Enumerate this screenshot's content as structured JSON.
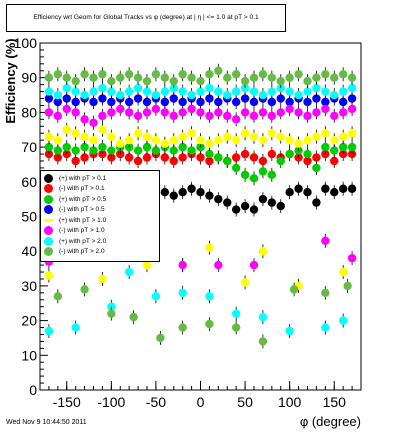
{
  "footer": "Wed Nov  9 10:44:50 2011",
  "chart_data": {
    "type": "scatter",
    "title": "Efficiency wrt Geom for Global Tracks vs φ (degree) at |  η | <= 1.0 at pT > 0.1",
    "xlabel": "φ (degree)",
    "ylabel": "Efficiency (%)",
    "xlim": [
      -180,
      180
    ],
    "ylim": [
      0,
      100
    ],
    "xticks": [
      "-150",
      "-100",
      "-50",
      "0",
      "50",
      "100",
      "150"
    ],
    "xtick_values": [
      -150,
      -100,
      -50,
      0,
      50,
      100,
      150
    ],
    "yticks": [
      "0",
      "10",
      "20",
      "30",
      "40",
      "50",
      "60",
      "70",
      "80",
      "90",
      "100"
    ],
    "ytick_values": [
      0,
      10,
      20,
      30,
      40,
      50,
      60,
      70,
      80,
      90,
      100
    ],
    "grid": false,
    "legend_position": "left",
    "series": [
      {
        "name": "(+) with pT > 0.1",
        "color": "#000000",
        "marker": "circle",
        "x": [
          -170,
          -160,
          -150,
          -140,
          -130,
          -120,
          -110,
          -100,
          -90,
          -80,
          -70,
          -60,
          -50,
          -40,
          -30,
          -20,
          -10,
          0,
          10,
          20,
          30,
          40,
          50,
          60,
          70,
          80,
          90,
          100,
          110,
          120,
          130,
          140,
          150,
          160,
          170
        ],
        "y": [
          58,
          57,
          58,
          57,
          59,
          58,
          57,
          58,
          58,
          57,
          58,
          57,
          58,
          57,
          56,
          57,
          58,
          57,
          56,
          55,
          54,
          52,
          53,
          52,
          55,
          54,
          53,
          57,
          58,
          57,
          54,
          58,
          57,
          58,
          58
        ]
      },
      {
        "name": "(-) with pT > 0.1",
        "color": "#ff0000",
        "marker": "circle",
        "x": [
          -170,
          -160,
          -150,
          -140,
          -130,
          -120,
          -110,
          -100,
          -90,
          -80,
          -70,
          -60,
          -50,
          -40,
          -30,
          -20,
          -10,
          0,
          10,
          20,
          30,
          40,
          50,
          60,
          70,
          80,
          90,
          100,
          110,
          120,
          130,
          140,
          150,
          160,
          170
        ],
        "y": [
          68,
          67,
          68,
          66,
          67,
          68,
          68,
          67,
          68,
          67,
          66,
          67,
          68,
          67,
          66,
          67,
          68,
          67,
          66,
          67,
          66,
          67,
          68,
          67,
          66,
          68,
          67,
          68,
          67,
          66,
          67,
          68,
          66,
          68,
          68
        ]
      },
      {
        "name": "(+) with pT > 0.5",
        "color": "#00cc00",
        "marker": "circle",
        "x": [
          -170,
          -160,
          -150,
          -140,
          -130,
          -120,
          -110,
          -100,
          -90,
          -80,
          -70,
          -60,
          -50,
          -40,
          -30,
          -20,
          -10,
          0,
          10,
          20,
          30,
          40,
          50,
          60,
          70,
          80,
          90,
          100,
          110,
          120,
          130,
          140,
          150,
          160,
          170
        ],
        "y": [
          70,
          69,
          70,
          69,
          70,
          69,
          70,
          69,
          70,
          70,
          69,
          70,
          69,
          70,
          69,
          70,
          69,
          70,
          68,
          67,
          66,
          64,
          62,
          61,
          63,
          62,
          66,
          68,
          69,
          68,
          64,
          70,
          69,
          70,
          70
        ]
      },
      {
        "name": "(-) with pT > 0.5",
        "color": "#0000ff",
        "marker": "circle",
        "x": [
          -170,
          -160,
          -150,
          -140,
          -130,
          -120,
          -110,
          -100,
          -90,
          -80,
          -70,
          -60,
          -50,
          -40,
          -30,
          -20,
          -10,
          0,
          10,
          20,
          30,
          40,
          50,
          60,
          70,
          80,
          90,
          100,
          110,
          120,
          130,
          140,
          150,
          160,
          170
        ],
        "y": [
          84,
          83,
          84,
          83,
          84,
          83,
          84,
          83,
          84,
          83,
          84,
          83,
          84,
          83,
          84,
          83,
          84,
          83,
          84,
          83,
          84,
          83,
          84,
          83,
          84,
          83,
          84,
          83,
          84,
          83,
          84,
          83,
          84,
          83,
          84
        ]
      },
      {
        "name": "(+) with pT > 1.0",
        "color": "#ffff00",
        "marker": "circle",
        "x": [
          -170,
          -160,
          -150,
          -140,
          -130,
          -120,
          -110,
          -100,
          -90,
          -80,
          -70,
          -60,
          -50,
          -40,
          -30,
          -20,
          -10,
          0,
          10,
          20,
          30,
          40,
          50,
          60,
          70,
          80,
          90,
          100,
          110,
          120,
          130,
          140,
          150,
          160,
          170
        ],
        "y": [
          73,
          72,
          75,
          74,
          73,
          72,
          75,
          73,
          71,
          72,
          74,
          73,
          72,
          71,
          72,
          73,
          74,
          72,
          71,
          72,
          73,
          72,
          74,
          73,
          72,
          74,
          73,
          72,
          71,
          72,
          73,
          74,
          72,
          73,
          74
        ]
      },
      {
        "name": "(-) with pT > 1.0",
        "color": "#ff00ff",
        "marker": "circle",
        "x": [
          -170,
          -160,
          -150,
          -140,
          -130,
          -120,
          -110,
          -100,
          -90,
          -80,
          -70,
          -60,
          -50,
          -40,
          -30,
          -20,
          -10,
          0,
          10,
          20,
          30,
          40,
          50,
          60,
          70,
          80,
          90,
          100,
          110,
          120,
          130,
          140,
          150,
          160,
          170
        ],
        "y": [
          80,
          79,
          81,
          80,
          78,
          77,
          79,
          80,
          81,
          80,
          79,
          80,
          81,
          80,
          79,
          80,
          81,
          80,
          79,
          80,
          79,
          78,
          80,
          79,
          80,
          79,
          80,
          81,
          80,
          79,
          80,
          81,
          79,
          80,
          81
        ]
      },
      {
        "name": "(+) with pT > 2.0",
        "color": "#00ffff",
        "marker": "circle",
        "x": [
          -170,
          -160,
          -150,
          -140,
          -130,
          -120,
          -110,
          -100,
          -90,
          -80,
          -70,
          -60,
          -50,
          -40,
          -30,
          -20,
          -10,
          0,
          10,
          20,
          30,
          40,
          50,
          60,
          70,
          80,
          90,
          100,
          110,
          120,
          130,
          140,
          150,
          160,
          170
        ],
        "y": [
          86,
          85,
          87,
          86,
          85,
          86,
          87,
          86,
          85,
          86,
          87,
          86,
          85,
          86,
          87,
          86,
          85,
          86,
          87,
          86,
          85,
          86,
          87,
          86,
          85,
          86,
          87,
          86,
          85,
          86,
          87,
          86,
          85,
          86,
          87
        ]
      },
      {
        "name": "(-) with pT > 2.0",
        "color": "#66bb44",
        "marker": "circle",
        "x": [
          -170,
          -160,
          -150,
          -140,
          -130,
          -120,
          -110,
          -100,
          -90,
          -80,
          -70,
          -60,
          -50,
          -40,
          -30,
          -20,
          -10,
          0,
          10,
          20,
          30,
          40,
          50,
          60,
          70,
          80,
          90,
          100,
          110,
          120,
          130,
          140,
          150,
          160,
          170
        ],
        "y": [
          90,
          91,
          90,
          89,
          91,
          90,
          91,
          89,
          90,
          91,
          90,
          89,
          91,
          90,
          89,
          91,
          90,
          89,
          91,
          92,
          90,
          91,
          89,
          90,
          91,
          90,
          89,
          90,
          91,
          89,
          90,
          91,
          90,
          91,
          90
        ]
      }
    ],
    "outliers": [
      {
        "series": 4,
        "x": [
          -170,
          -110,
          -60,
          -20,
          10,
          50,
          70,
          110,
          160
        ],
        "y": [
          33,
          32,
          36,
          36,
          41,
          31,
          40,
          30,
          34
        ]
      },
      {
        "series": 5,
        "x": [
          -170,
          -90,
          -50,
          -20,
          20,
          60,
          140,
          170
        ],
        "y": [
          37,
          41,
          43,
          36,
          36,
          36,
          43,
          38
        ]
      },
      {
        "series": 6,
        "x": [
          -170,
          -140,
          -100,
          -80,
          -50,
          -20,
          10,
          40,
          70,
          100,
          140,
          160
        ],
        "y": [
          17,
          18,
          24,
          34,
          27,
          28,
          27,
          22,
          21,
          17,
          18,
          20
        ]
      },
      {
        "series": 7,
        "x": [
          -160,
          -130,
          -100,
          -75,
          -45,
          -20,
          10,
          40,
          70,
          105,
          140,
          165
        ],
        "y": [
          27,
          29,
          22,
          21,
          15,
          18,
          19,
          18,
          14,
          29,
          28,
          30
        ]
      }
    ]
  }
}
